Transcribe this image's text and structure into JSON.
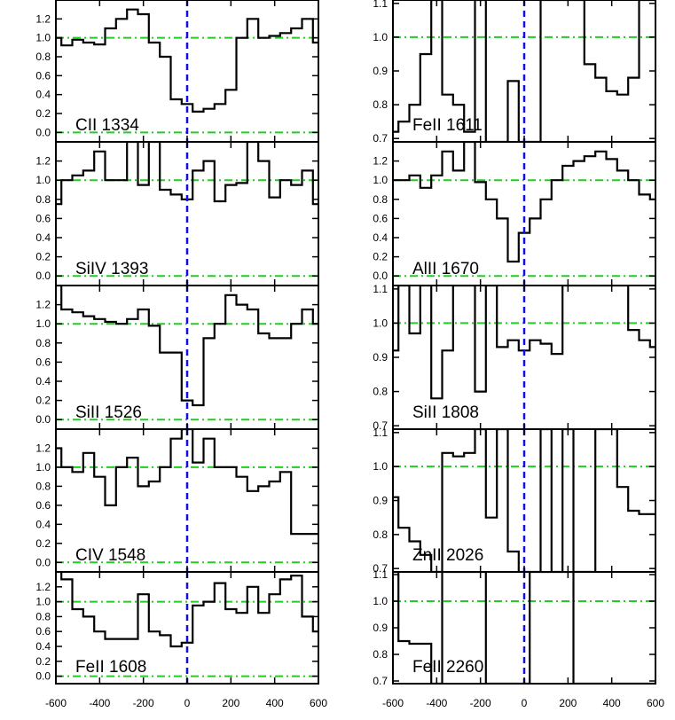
{
  "chart_data": {
    "type": "line",
    "xlim": [
      -600,
      600
    ],
    "x_ticks": [
      -600,
      -400,
      -200,
      0,
      200,
      400,
      600
    ],
    "x_tick_labels": [
      "-600",
      "-400",
      "-200",
      "0",
      "200",
      "400",
      "600"
    ],
    "reference_lines": {
      "continuum": 1.0,
      "zero_level": 0.0,
      "velocity_zero": 0
    },
    "colors": {
      "spectrum": "#000000",
      "continuum": "#22cc22",
      "velocity_zero": "#1010dd"
    },
    "panels": [
      {
        "label": "CII 1334",
        "column": "left",
        "ylim": [
          -0.1,
          1.4
        ],
        "yticks": [
          0.0,
          0.2,
          0.4,
          0.6,
          0.8,
          1.0,
          1.2
        ],
        "ytick_labels": [
          "0.0",
          "0.2",
          "0.4",
          "0.6",
          "0.8",
          "1.0",
          "1.2"
        ],
        "x": [
          -600,
          -550,
          -500,
          -450,
          -400,
          -350,
          -300,
          -250,
          -200,
          -150,
          -100,
          -50,
          0,
          50,
          100,
          150,
          200,
          250,
          300,
          350,
          400,
          450,
          500,
          550,
          600
        ],
        "y": [
          1.0,
          0.92,
          0.98,
          0.95,
          0.93,
          1.1,
          1.2,
          1.3,
          1.25,
          0.95,
          0.8,
          0.35,
          0.3,
          0.22,
          0.25,
          0.3,
          0.45,
          1.0,
          1.2,
          1.0,
          1.02,
          1.05,
          1.1,
          1.2,
          0.95
        ]
      },
      {
        "label": "SiIV 1393",
        "column": "left",
        "ylim": [
          -0.1,
          1.4
        ],
        "yticks": [
          0.0,
          0.2,
          0.4,
          0.6,
          0.8,
          1.0,
          1.2
        ],
        "ytick_labels": [
          "0.0",
          "0.2",
          "0.4",
          "0.6",
          "0.8",
          "1.0",
          "1.2"
        ],
        "x": [
          -600,
          -550,
          -500,
          -450,
          -400,
          -350,
          -300,
          -250,
          -200,
          -150,
          -100,
          -50,
          0,
          50,
          100,
          150,
          200,
          250,
          300,
          350,
          400,
          450,
          500,
          550,
          600
        ],
        "y": [
          0.75,
          1.0,
          1.05,
          1.1,
          1.3,
          1.0,
          1.0,
          1.4,
          0.95,
          1.4,
          0.9,
          0.85,
          0.8,
          1.1,
          1.2,
          0.78,
          0.95,
          0.97,
          1.4,
          1.2,
          0.82,
          1.0,
          0.95,
          1.1,
          0.75
        ]
      },
      {
        "label": "SiII 1526",
        "column": "left",
        "ylim": [
          -0.1,
          1.4
        ],
        "yticks": [
          0.0,
          0.2,
          0.4,
          0.6,
          0.8,
          1.0,
          1.2
        ],
        "ytick_labels": [
          "0.0",
          "0.2",
          "0.4",
          "0.6",
          "0.8",
          "1.0",
          "1.2"
        ],
        "x": [
          -600,
          -550,
          -500,
          -450,
          -400,
          -350,
          -300,
          -250,
          -200,
          -150,
          -100,
          -50,
          0,
          50,
          100,
          150,
          200,
          250,
          300,
          350,
          400,
          450,
          500,
          550,
          600
        ],
        "y": [
          1.4,
          1.15,
          1.12,
          1.08,
          1.05,
          1.02,
          1.0,
          1.05,
          1.15,
          0.98,
          0.7,
          0.7,
          0.2,
          0.15,
          0.85,
          1.0,
          1.3,
          1.2,
          1.15,
          0.9,
          0.85,
          0.85,
          1.0,
          1.15,
          1.0
        ]
      },
      {
        "label": "CIV 1548",
        "column": "left",
        "ylim": [
          -0.1,
          1.4
        ],
        "yticks": [
          0.0,
          0.2,
          0.4,
          0.6,
          0.8,
          1.0,
          1.2
        ],
        "ytick_labels": [
          "0.0",
          "0.2",
          "0.4",
          "0.6",
          "0.8",
          "1.0",
          "1.2"
        ],
        "x": [
          -600,
          -550,
          -500,
          -450,
          -400,
          -350,
          -300,
          -250,
          -200,
          -150,
          -100,
          -50,
          0,
          50,
          100,
          150,
          200,
          250,
          300,
          350,
          400,
          450,
          500,
          550,
          600
        ],
        "y": [
          1.2,
          1.0,
          0.95,
          1.15,
          0.9,
          0.6,
          1.0,
          1.1,
          0.8,
          0.85,
          1.0,
          1.3,
          1.4,
          1.05,
          1.3,
          1.0,
          1.0,
          0.9,
          0.75,
          0.8,
          0.85,
          0.95,
          0.3,
          0.3,
          0.3
        ]
      },
      {
        "label": "FeII 1608",
        "column": "left",
        "ylim": [
          -0.1,
          1.4
        ],
        "yticks": [
          0.0,
          0.2,
          0.4,
          0.6,
          0.8,
          1.0,
          1.2
        ],
        "ytick_labels": [
          "0.0",
          "0.2",
          "0.4",
          "0.6",
          "0.8",
          "1.0",
          "1.2"
        ],
        "x": [
          -600,
          -550,
          -500,
          -450,
          -400,
          -350,
          -300,
          -250,
          -200,
          -150,
          -100,
          -50,
          0,
          50,
          100,
          150,
          200,
          250,
          300,
          350,
          400,
          450,
          500,
          550,
          600
        ],
        "y": [
          1.4,
          1.3,
          0.9,
          0.8,
          0.6,
          0.5,
          0.5,
          0.5,
          1.1,
          0.6,
          0.55,
          0.4,
          0.45,
          0.95,
          1.0,
          1.25,
          0.9,
          0.85,
          1.2,
          0.85,
          1.1,
          1.3,
          1.35,
          0.8,
          0.6
        ]
      },
      {
        "label": "FeII 1611",
        "column": "right",
        "ylim": [
          0.69,
          1.11
        ],
        "yticks": [
          0.7,
          0.8,
          0.9,
          1.0,
          1.1
        ],
        "ytick_labels": [
          "0.7",
          "0.8",
          "0.9",
          "1.0",
          "1.1"
        ],
        "x": [
          -600,
          -550,
          -500,
          -450,
          -400,
          -350,
          -300,
          -250,
          -200,
          -150,
          -100,
          -50,
          0,
          50,
          100,
          150,
          200,
          250,
          300,
          350,
          400,
          450,
          500,
          550,
          600
        ],
        "y": [
          0.72,
          0.75,
          0.8,
          0.95,
          1.11,
          0.83,
          0.8,
          0.72,
          1.11,
          0.68,
          0.68,
          0.87,
          0.68,
          0.68,
          1.11,
          1.11,
          1.11,
          1.11,
          0.92,
          0.88,
          0.84,
          0.83,
          0.88,
          1.11,
          1.11
        ]
      },
      {
        "label": "AlII 1670",
        "column": "right",
        "ylim": [
          -0.1,
          1.4
        ],
        "yticks": [
          0.0,
          0.2,
          0.4,
          0.6,
          0.8,
          1.0,
          1.2
        ],
        "ytick_labels": [
          "0.0",
          "0.2",
          "0.4",
          "0.6",
          "0.8",
          "1.0",
          "1.2"
        ],
        "x": [
          -600,
          -550,
          -500,
          -450,
          -400,
          -350,
          -300,
          -250,
          -200,
          -150,
          -100,
          -50,
          0,
          50,
          100,
          150,
          200,
          250,
          300,
          350,
          400,
          450,
          500,
          550,
          600
        ],
        "y": [
          1.0,
          1.0,
          1.05,
          0.92,
          1.05,
          1.3,
          1.1,
          1.4,
          0.98,
          0.8,
          0.6,
          0.15,
          0.45,
          0.6,
          0.8,
          1.0,
          1.15,
          1.2,
          1.25,
          1.3,
          1.22,
          1.1,
          1.0,
          0.85,
          0.8
        ]
      },
      {
        "label": "SiII 1808",
        "column": "right",
        "ylim": [
          0.69,
          1.11
        ],
        "yticks": [
          0.7,
          0.8,
          0.9,
          1.0,
          1.1
        ],
        "ytick_labels": [
          "0.7",
          "0.8",
          "0.9",
          "1.0",
          "1.1"
        ],
        "x": [
          -600,
          -550,
          -500,
          -450,
          -400,
          -350,
          -300,
          -250,
          -200,
          -150,
          -100,
          -50,
          0,
          50,
          100,
          150,
          200,
          250,
          300,
          350,
          400,
          450,
          500,
          550,
          600
        ],
        "y": [
          0.92,
          1.11,
          0.97,
          1.11,
          0.78,
          0.92,
          1.11,
          1.11,
          0.8,
          1.11,
          0.93,
          0.95,
          0.92,
          0.95,
          0.94,
          0.91,
          1.11,
          1.11,
          1.11,
          1.11,
          1.11,
          1.11,
          0.98,
          0.95,
          0.93
        ]
      },
      {
        "label": "ZnII 2026",
        "column": "right",
        "ylim": [
          0.69,
          1.11
        ],
        "yticks": [
          0.7,
          0.8,
          0.9,
          1.0,
          1.1
        ],
        "ytick_labels": [
          "0.7",
          "0.8",
          "0.9",
          "1.0",
          "1.1"
        ],
        "x": [
          -600,
          -550,
          -500,
          -450,
          -400,
          -350,
          -300,
          -250,
          -200,
          -150,
          -100,
          -50,
          0,
          50,
          100,
          150,
          200,
          250,
          300,
          350,
          400,
          450,
          500,
          550,
          600
        ],
        "y": [
          0.91,
          0.82,
          0.78,
          0.74,
          0.69,
          1.04,
          1.03,
          1.04,
          1.11,
          0.85,
          1.11,
          0.75,
          0.68,
          0.68,
          1.11,
          0.68,
          1.11,
          0.69,
          0.69,
          1.11,
          1.11,
          0.94,
          0.87,
          0.86,
          0.86
        ]
      },
      {
        "label": "FeII 2260",
        "column": "right",
        "ylim": [
          0.69,
          1.11
        ],
        "yticks": [
          0.7,
          0.8,
          0.9,
          1.0,
          1.1
        ],
        "ytick_labels": [
          "0.7",
          "0.8",
          "0.9",
          "1.0",
          "1.1"
        ],
        "x": [
          -600,
          -550,
          -500,
          -450,
          -400,
          -350,
          -300,
          -250,
          -200,
          -150,
          -100,
          -50,
          0,
          50,
          100,
          150,
          200,
          250,
          300,
          350,
          400,
          450,
          500,
          550,
          600
        ],
        "y": [
          1.11,
          0.85,
          0.84,
          0.84,
          0.68,
          1.11,
          1.11,
          1.11,
          1.11,
          0.68,
          0.68,
          0.68,
          0.68,
          1.11,
          1.11,
          1.11,
          1.11,
          0.68,
          0.68,
          0.68,
          0.68,
          0.68,
          0.68,
          0.68,
          0.68
        ]
      }
    ]
  }
}
